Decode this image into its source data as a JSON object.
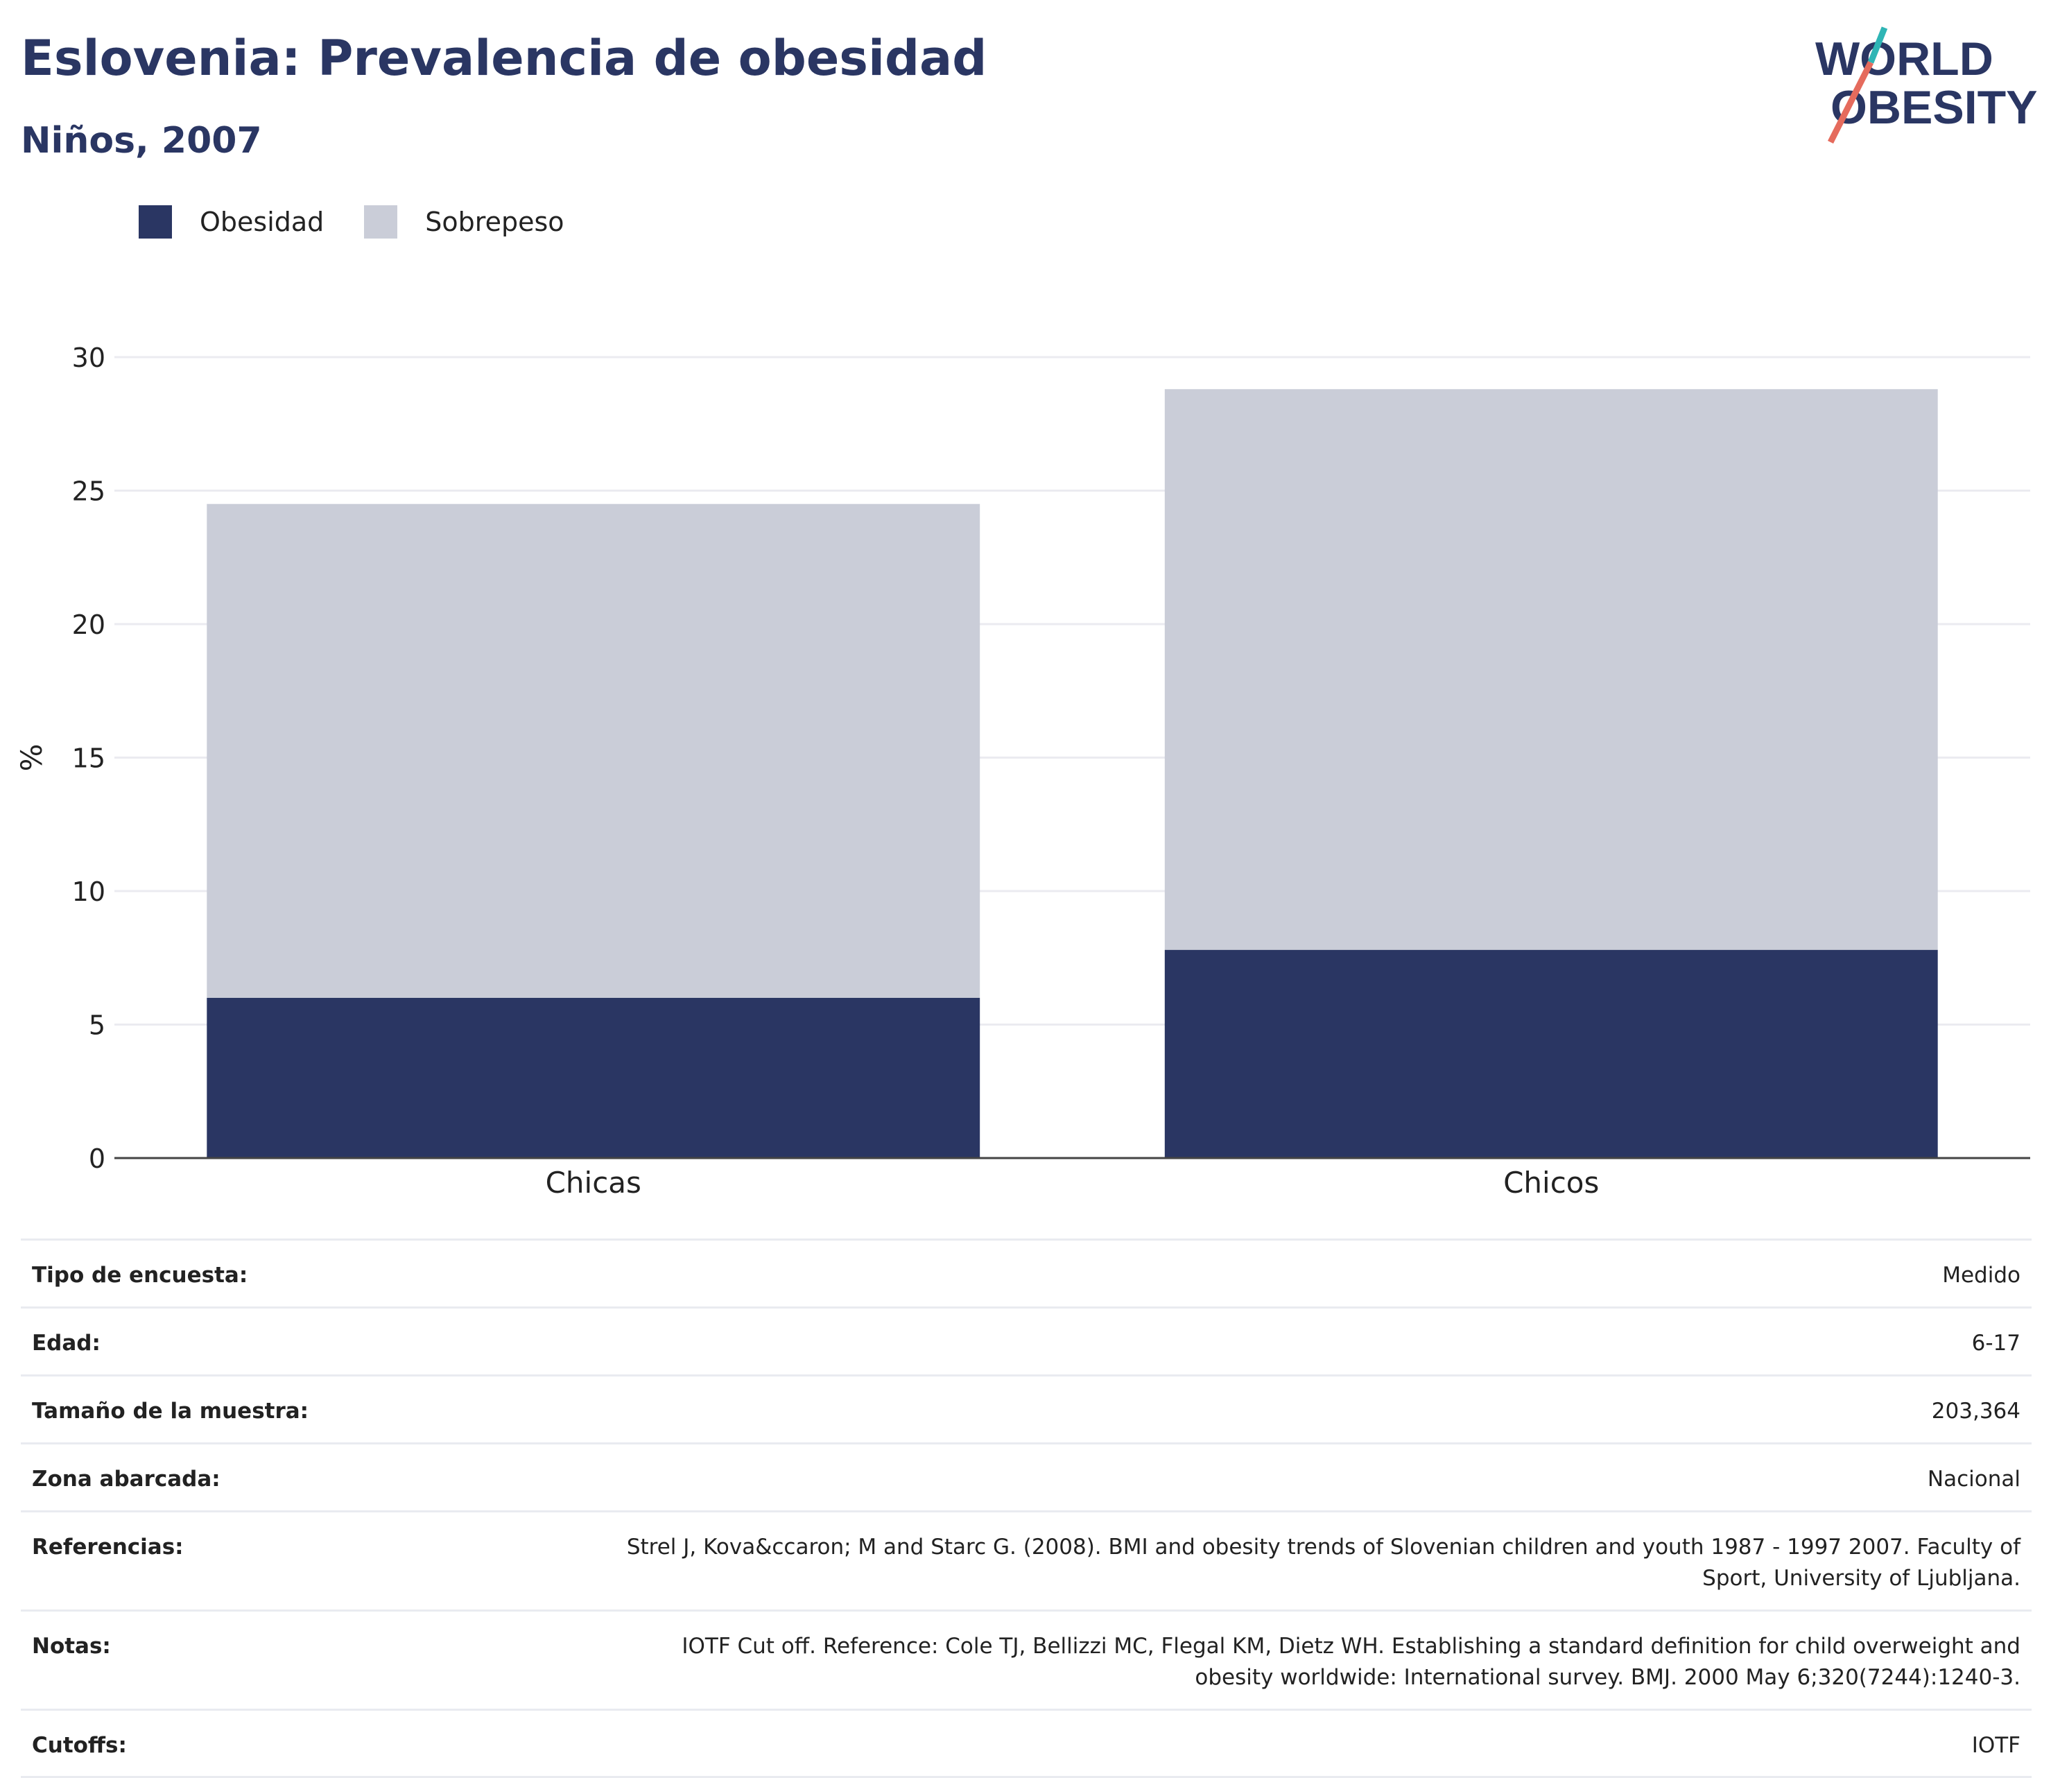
{
  "header": {
    "title": "Eslovenia: Prevalencia de obesidad",
    "subtitle": "Niños, 2007"
  },
  "logo": {
    "line1": "WORLD",
    "line2": "OBESITY"
  },
  "colors": {
    "obesity": "#2a3663",
    "overweight": "#cacdd8",
    "logo_teal": "#2fb5b5",
    "logo_coral": "#e56b5d"
  },
  "legend": [
    {
      "label": "Obesidad",
      "color": "#2a3663"
    },
    {
      "label": "Sobrepeso",
      "color": "#cacdd8"
    }
  ],
  "chart_data": {
    "type": "bar",
    "stacked": true,
    "categories": [
      "Chicas",
      "Chicos"
    ],
    "series": [
      {
        "name": "Obesidad",
        "values": [
          6.0,
          7.8
        ]
      },
      {
        "name": "Sobrepeso",
        "values": [
          18.5,
          21.0
        ]
      }
    ],
    "ylabel": "%",
    "ylim": [
      0,
      30
    ],
    "yticks": [
      "0",
      "5",
      "10",
      "15",
      "20",
      "25",
      "30"
    ],
    "grid": true,
    "legend_position": "top-left"
  },
  "meta": [
    {
      "key": "Tipo de encuesta:",
      "value": "Medido"
    },
    {
      "key": "Edad:",
      "value": "6-17"
    },
    {
      "key": "Tamaño de la muestra:",
      "value": "203,364"
    },
    {
      "key": "Zona abarcada:",
      "value": "Nacional"
    },
    {
      "key": "Referencias:",
      "value": "Strel J, Kova&ccaron; M and Starc G. (2008). BMI and obesity trends of Slovenian children and youth 1987 - 1997 2007. Faculty of Sport, University of Ljubljana."
    },
    {
      "key": "Notas:",
      "value": "IOTF Cut off. Reference: Cole TJ, Bellizzi MC, Flegal KM, Dietz WH. Establishing a standard definition for child overweight and obesity worldwide: International survey. BMJ. 2000 May 6;320(7244):1240-3."
    },
    {
      "key": "Cutoffs:",
      "value": "IOTF"
    }
  ]
}
